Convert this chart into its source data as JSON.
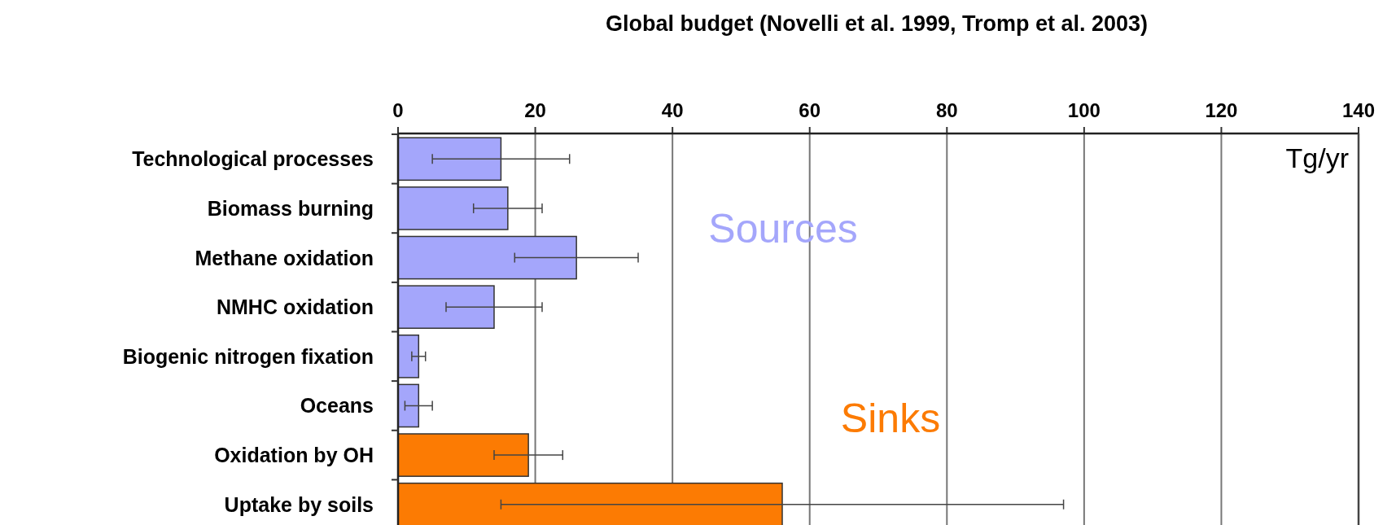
{
  "chart_data": {
    "type": "bar",
    "orientation": "horizontal",
    "title": "Global budget (Novelli et al. 1999, Tromp et al. 2003)",
    "xlabel": "Tg/yr",
    "categories": [
      "Technological processes",
      "Biomass burning",
      "Methane oxidation",
      "NMHC oxidation",
      "Biogenic nitrogen fixation",
      "Oceans",
      "Oxidation by OH",
      "Uptake by soils"
    ],
    "series": [
      {
        "name": "Sources",
        "color": "#a4a6fb",
        "values": [
          15,
          16,
          26,
          14,
          3,
          3,
          null,
          null
        ],
        "errors": [
          10,
          5,
          9,
          7,
          1,
          2,
          null,
          null
        ]
      },
      {
        "name": "Sinks",
        "color": "#fc7b03",
        "values": [
          null,
          null,
          null,
          null,
          null,
          null,
          19,
          56
        ],
        "errors": [
          null,
          null,
          null,
          null,
          null,
          null,
          5,
          41
        ]
      }
    ],
    "xlim": [
      0,
      140
    ],
    "xticks": [
      0,
      20,
      40,
      60,
      80,
      100,
      120,
      140
    ],
    "grid": "x"
  }
}
